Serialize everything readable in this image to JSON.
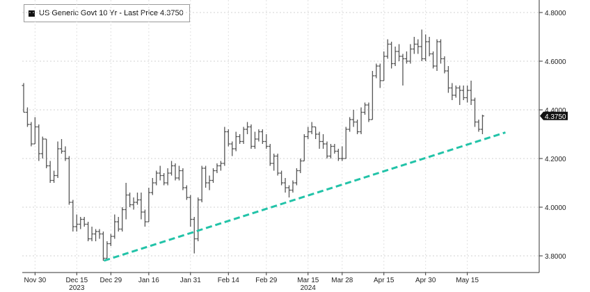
{
  "chart_data": {
    "type": "bar",
    "style": "ohlc",
    "legend": {
      "label": "US Generic Govt 10 Yr - Last Price 4.3750",
      "placement": "top-left"
    },
    "last_price_label": "4.3750",
    "x_axis": {
      "tick_labels": [
        "Nov 30",
        "Dec 15",
        "Dec 29",
        "Jan 16",
        "Jan 31",
        "Feb 14",
        "Feb 29",
        "Mar 15",
        "Mar 28",
        "Apr 15",
        "Apr 30",
        "May 15"
      ],
      "year_labels": [
        "2023",
        "2024"
      ]
    },
    "y_axis": {
      "position": "right",
      "ylim": [
        3.74,
        4.84
      ],
      "tick_labels": [
        "3.8000",
        "4.0000",
        "4.2000",
        "4.4000",
        "4.6000",
        "4.8000"
      ]
    },
    "grid": true,
    "colors": {
      "bars": "#555555",
      "trendline": "#22c3a8",
      "last_price_box": "#111111"
    },
    "trendline": {
      "style": "dashed",
      "from": [
        "Dec 29",
        3.78
      ],
      "to": [
        "May 23",
        4.33
      ]
    },
    "ohlc": [
      {
        "date": "Nov 27",
        "o": 4.5,
        "h": 4.51,
        "l": 4.39,
        "c": 4.39
      },
      {
        "date": "Nov 28",
        "o": 4.39,
        "h": 4.41,
        "l": 4.33,
        "c": 4.34
      },
      {
        "date": "Nov 29",
        "o": 4.34,
        "h": 4.35,
        "l": 4.25,
        "c": 4.26
      },
      {
        "date": "Nov 30",
        "o": 4.26,
        "h": 4.37,
        "l": 4.26,
        "c": 4.33
      },
      {
        "date": "Dec 1",
        "o": 4.33,
        "h": 4.34,
        "l": 4.19,
        "c": 4.22
      },
      {
        "date": "Dec 4",
        "o": 4.22,
        "h": 4.29,
        "l": 4.2,
        "c": 4.28
      },
      {
        "date": "Dec 5",
        "o": 4.28,
        "h": 4.28,
        "l": 4.16,
        "c": 4.17
      },
      {
        "date": "Dec 6",
        "o": 4.17,
        "h": 4.19,
        "l": 4.1,
        "c": 4.11
      },
      {
        "date": "Dec 7",
        "o": 4.11,
        "h": 4.15,
        "l": 4.1,
        "c": 4.13
      },
      {
        "date": "Dec 8",
        "o": 4.13,
        "h": 4.27,
        "l": 4.12,
        "c": 4.24
      },
      {
        "date": "Dec 11",
        "o": 4.24,
        "h": 4.28,
        "l": 4.22,
        "c": 4.23
      },
      {
        "date": "Dec 12",
        "o": 4.23,
        "h": 4.25,
        "l": 4.19,
        "c": 4.2
      },
      {
        "date": "Dec 13",
        "o": 4.2,
        "h": 4.21,
        "l": 4.01,
        "c": 4.02
      },
      {
        "date": "Dec 14",
        "o": 4.02,
        "h": 4.03,
        "l": 3.9,
        "c": 3.92
      },
      {
        "date": "Dec 15",
        "o": 3.92,
        "h": 3.97,
        "l": 3.9,
        "c": 3.93
      },
      {
        "date": "Dec 18",
        "o": 3.93,
        "h": 3.96,
        "l": 3.91,
        "c": 3.95
      },
      {
        "date": "Dec 19",
        "o": 3.95,
        "h": 3.96,
        "l": 3.92,
        "c": 3.93
      },
      {
        "date": "Dec 20",
        "o": 3.93,
        "h": 3.94,
        "l": 3.86,
        "c": 3.87
      },
      {
        "date": "Dec 21",
        "o": 3.87,
        "h": 3.92,
        "l": 3.86,
        "c": 3.89
      },
      {
        "date": "Dec 22",
        "o": 3.89,
        "h": 3.91,
        "l": 3.86,
        "c": 3.9
      },
      {
        "date": "Dec 26",
        "o": 3.9,
        "h": 3.91,
        "l": 3.87,
        "c": 3.89
      },
      {
        "date": "Dec 27",
        "o": 3.89,
        "h": 3.9,
        "l": 3.78,
        "c": 3.79
      },
      {
        "date": "Dec 28",
        "o": 3.79,
        "h": 3.86,
        "l": 3.79,
        "c": 3.85
      },
      {
        "date": "Dec 29",
        "o": 3.85,
        "h": 3.89,
        "l": 3.84,
        "c": 3.88
      },
      {
        "date": "Jan 2",
        "o": 3.88,
        "h": 3.97,
        "l": 3.87,
        "c": 3.94
      },
      {
        "date": "Jan 3",
        "o": 3.94,
        "h": 3.96,
        "l": 3.9,
        "c": 3.91
      },
      {
        "date": "Jan 4",
        "o": 3.91,
        "h": 4.0,
        "l": 3.9,
        "c": 3.99
      },
      {
        "date": "Jan 5",
        "o": 3.99,
        "h": 4.1,
        "l": 3.95,
        "c": 4.05
      },
      {
        "date": "Jan 8",
        "o": 4.05,
        "h": 4.06,
        "l": 4.0,
        "c": 4.01
      },
      {
        "date": "Jan 9",
        "o": 4.01,
        "h": 4.04,
        "l": 3.99,
        "c": 4.02
      },
      {
        "date": "Jan 10",
        "o": 4.02,
        "h": 4.06,
        "l": 4.01,
        "c": 4.03
      },
      {
        "date": "Jan 11",
        "o": 4.03,
        "h": 4.06,
        "l": 3.95,
        "c": 3.98
      },
      {
        "date": "Jan 12",
        "o": 3.98,
        "h": 3.99,
        "l": 3.92,
        "c": 3.94
      },
      {
        "date": "Jan 16",
        "o": 3.94,
        "h": 4.08,
        "l": 3.94,
        "c": 4.06
      },
      {
        "date": "Jan 17",
        "o": 4.06,
        "h": 4.12,
        "l": 4.05,
        "c": 4.1
      },
      {
        "date": "Jan 18",
        "o": 4.1,
        "h": 4.15,
        "l": 4.09,
        "c": 4.14
      },
      {
        "date": "Jan 19",
        "o": 4.14,
        "h": 4.17,
        "l": 4.11,
        "c": 4.13
      },
      {
        "date": "Jan 22",
        "o": 4.13,
        "h": 4.14,
        "l": 4.09,
        "c": 4.1
      },
      {
        "date": "Jan 23",
        "o": 4.1,
        "h": 4.16,
        "l": 4.09,
        "c": 4.14
      },
      {
        "date": "Jan 24",
        "o": 4.14,
        "h": 4.19,
        "l": 4.13,
        "c": 4.17
      },
      {
        "date": "Jan 25",
        "o": 4.17,
        "h": 4.18,
        "l": 4.11,
        "c": 4.12
      },
      {
        "date": "Jan 26",
        "o": 4.12,
        "h": 4.17,
        "l": 4.11,
        "c": 4.15
      },
      {
        "date": "Jan 29",
        "o": 4.15,
        "h": 4.16,
        "l": 4.07,
        "c": 4.08
      },
      {
        "date": "Jan 30",
        "o": 4.08,
        "h": 4.09,
        "l": 4.03,
        "c": 4.04
      },
      {
        "date": "Jan 31",
        "o": 4.04,
        "h": 4.05,
        "l": 3.92,
        "c": 3.95
      },
      {
        "date": "Feb 1",
        "o": 3.95,
        "h": 3.96,
        "l": 3.81,
        "c": 3.87
      },
      {
        "date": "Feb 2",
        "o": 3.87,
        "h": 4.04,
        "l": 3.86,
        "c": 4.03
      },
      {
        "date": "Feb 5",
        "o": 4.03,
        "h": 4.17,
        "l": 4.02,
        "c": 4.16
      },
      {
        "date": "Feb 6",
        "o": 4.16,
        "h": 4.17,
        "l": 4.08,
        "c": 4.1
      },
      {
        "date": "Feb 7",
        "o": 4.1,
        "h": 4.13,
        "l": 4.07,
        "c": 4.11
      },
      {
        "date": "Feb 8",
        "o": 4.11,
        "h": 4.16,
        "l": 4.1,
        "c": 4.15
      },
      {
        "date": "Feb 9",
        "o": 4.15,
        "h": 4.18,
        "l": 4.14,
        "c": 4.17
      },
      {
        "date": "Feb 12",
        "o": 4.17,
        "h": 4.19,
        "l": 4.15,
        "c": 4.18
      },
      {
        "date": "Feb 13",
        "o": 4.18,
        "h": 4.33,
        "l": 4.17,
        "c": 4.31
      },
      {
        "date": "Feb 14",
        "o": 4.31,
        "h": 4.32,
        "l": 4.25,
        "c": 4.26
      },
      {
        "date": "Feb 15",
        "o": 4.26,
        "h": 4.27,
        "l": 4.21,
        "c": 4.24
      },
      {
        "date": "Feb 16",
        "o": 4.24,
        "h": 4.31,
        "l": 4.23,
        "c": 4.29
      },
      {
        "date": "Feb 20",
        "o": 4.29,
        "h": 4.3,
        "l": 4.26,
        "c": 4.27
      },
      {
        "date": "Feb 21",
        "o": 4.27,
        "h": 4.33,
        "l": 4.26,
        "c": 4.32
      },
      {
        "date": "Feb 22",
        "o": 4.32,
        "h": 4.35,
        "l": 4.3,
        "c": 4.33
      },
      {
        "date": "Feb 23",
        "o": 4.33,
        "h": 4.34,
        "l": 4.24,
        "c": 4.25
      },
      {
        "date": "Feb 26",
        "o": 4.25,
        "h": 4.31,
        "l": 4.24,
        "c": 4.28
      },
      {
        "date": "Feb 27",
        "o": 4.28,
        "h": 4.32,
        "l": 4.27,
        "c": 4.31
      },
      {
        "date": "Feb 28",
        "o": 4.31,
        "h": 4.32,
        "l": 4.26,
        "c": 4.27
      },
      {
        "date": "Feb 29",
        "o": 4.27,
        "h": 4.3,
        "l": 4.24,
        "c": 4.25
      },
      {
        "date": "Mar 1",
        "o": 4.25,
        "h": 4.26,
        "l": 4.17,
        "c": 4.18
      },
      {
        "date": "Mar 4",
        "o": 4.18,
        "h": 4.22,
        "l": 4.15,
        "c": 4.21
      },
      {
        "date": "Mar 5",
        "o": 4.21,
        "h": 4.22,
        "l": 4.13,
        "c": 4.14
      },
      {
        "date": "Mar 6",
        "o": 4.14,
        "h": 4.15,
        "l": 4.09,
        "c": 4.1
      },
      {
        "date": "Mar 7",
        "o": 4.1,
        "h": 4.12,
        "l": 4.06,
        "c": 4.08
      },
      {
        "date": "Mar 8",
        "o": 4.08,
        "h": 4.09,
        "l": 4.04,
        "c": 4.07
      },
      {
        "date": "Mar 11",
        "o": 4.07,
        "h": 4.11,
        "l": 4.06,
        "c": 4.1
      },
      {
        "date": "Mar 12",
        "o": 4.1,
        "h": 4.16,
        "l": 4.09,
        "c": 4.15
      },
      {
        "date": "Mar 13",
        "o": 4.15,
        "h": 4.2,
        "l": 4.14,
        "c": 4.19
      },
      {
        "date": "Mar 14",
        "o": 4.19,
        "h": 4.3,
        "l": 4.19,
        "c": 4.29
      },
      {
        "date": "Mar 15",
        "o": 4.29,
        "h": 4.33,
        "l": 4.28,
        "c": 4.31
      },
      {
        "date": "Mar 18",
        "o": 4.31,
        "h": 4.35,
        "l": 4.3,
        "c": 4.33
      },
      {
        "date": "Mar 19",
        "o": 4.33,
        "h": 4.33,
        "l": 4.28,
        "c": 4.3
      },
      {
        "date": "Mar 20",
        "o": 4.3,
        "h": 4.31,
        "l": 4.24,
        "c": 4.27
      },
      {
        "date": "Mar 21",
        "o": 4.27,
        "h": 4.3,
        "l": 4.24,
        "c": 4.26
      },
      {
        "date": "Mar 22",
        "o": 4.26,
        "h": 4.27,
        "l": 4.2,
        "c": 4.21
      },
      {
        "date": "Mar 25",
        "o": 4.21,
        "h": 4.26,
        "l": 4.2,
        "c": 4.25
      },
      {
        "date": "Mar 26",
        "o": 4.25,
        "h": 4.26,
        "l": 4.22,
        "c": 4.23
      },
      {
        "date": "Mar 27",
        "o": 4.23,
        "h": 4.24,
        "l": 4.19,
        "c": 4.2
      },
      {
        "date": "Mar 28",
        "o": 4.2,
        "h": 4.25,
        "l": 4.19,
        "c": 4.2
      },
      {
        "date": "Apr 1",
        "o": 4.2,
        "h": 4.33,
        "l": 4.2,
        "c": 4.32
      },
      {
        "date": "Apr 2",
        "o": 4.32,
        "h": 4.37,
        "l": 4.31,
        "c": 4.36
      },
      {
        "date": "Apr 3",
        "o": 4.36,
        "h": 4.4,
        "l": 4.33,
        "c": 4.35
      },
      {
        "date": "Apr 4",
        "o": 4.35,
        "h": 4.36,
        "l": 4.3,
        "c": 4.31
      },
      {
        "date": "Apr 5",
        "o": 4.31,
        "h": 4.41,
        "l": 4.3,
        "c": 4.39
      },
      {
        "date": "Apr 8",
        "o": 4.39,
        "h": 4.43,
        "l": 4.38,
        "c": 4.42
      },
      {
        "date": "Apr 9",
        "o": 4.42,
        "h": 4.43,
        "l": 4.35,
        "c": 4.36
      },
      {
        "date": "Apr 10",
        "o": 4.36,
        "h": 4.56,
        "l": 4.36,
        "c": 4.54
      },
      {
        "date": "Apr 11",
        "o": 4.54,
        "h": 4.59,
        "l": 4.53,
        "c": 4.58
      },
      {
        "date": "Apr 12",
        "o": 4.58,
        "h": 4.59,
        "l": 4.49,
        "c": 4.52
      },
      {
        "date": "Apr 15",
        "o": 4.52,
        "h": 4.64,
        "l": 4.52,
        "c": 4.62
      },
      {
        "date": "Apr 16",
        "o": 4.62,
        "h": 4.69,
        "l": 4.61,
        "c": 4.67
      },
      {
        "date": "Apr 17",
        "o": 4.67,
        "h": 4.68,
        "l": 4.57,
        "c": 4.59
      },
      {
        "date": "Apr 18",
        "o": 4.59,
        "h": 4.66,
        "l": 4.58,
        "c": 4.64
      },
      {
        "date": "Apr 19",
        "o": 4.64,
        "h": 4.67,
        "l": 4.6,
        "c": 4.62
      },
      {
        "date": "Apr 22",
        "o": 4.62,
        "h": 4.63,
        "l": 4.5,
        "c": 4.61
      },
      {
        "date": "Apr 23",
        "o": 4.61,
        "h": 4.64,
        "l": 4.59,
        "c": 4.6
      },
      {
        "date": "Apr 24",
        "o": 4.6,
        "h": 4.67,
        "l": 4.59,
        "c": 4.65
      },
      {
        "date": "Apr 25",
        "o": 4.65,
        "h": 4.7,
        "l": 4.63,
        "c": 4.67
      },
      {
        "date": "Apr 26",
        "o": 4.67,
        "h": 4.69,
        "l": 4.63,
        "c": 4.66
      },
      {
        "date": "Apr 29",
        "o": 4.66,
        "h": 4.73,
        "l": 4.6,
        "c": 4.61
      },
      {
        "date": "Apr 30",
        "o": 4.61,
        "h": 4.71,
        "l": 4.6,
        "c": 4.68
      },
      {
        "date": "May 1",
        "o": 4.68,
        "h": 4.7,
        "l": 4.62,
        "c": 4.63
      },
      {
        "date": "May 2",
        "o": 4.63,
        "h": 4.64,
        "l": 4.57,
        "c": 4.58
      },
      {
        "date": "May 3",
        "o": 4.58,
        "h": 4.69,
        "l": 4.56,
        "c": 4.68
      },
      {
        "date": "May 6",
        "o": 4.68,
        "h": 4.69,
        "l": 4.59,
        "c": 4.61
      },
      {
        "date": "May 7",
        "o": 4.61,
        "h": 4.62,
        "l": 4.55,
        "c": 4.56
      },
      {
        "date": "May 8",
        "o": 4.56,
        "h": 4.58,
        "l": 4.47,
        "c": 4.49
      },
      {
        "date": "May 9",
        "o": 4.49,
        "h": 4.51,
        "l": 4.44,
        "c": 4.46
      },
      {
        "date": "May 10",
        "o": 4.46,
        "h": 4.5,
        "l": 4.45,
        "c": 4.49
      },
      {
        "date": "May 13",
        "o": 4.49,
        "h": 4.5,
        "l": 4.42,
        "c": 4.48
      },
      {
        "date": "May 14",
        "o": 4.48,
        "h": 4.5,
        "l": 4.44,
        "c": 4.45
      },
      {
        "date": "May 15",
        "o": 4.45,
        "h": 4.5,
        "l": 4.43,
        "c": 4.48
      },
      {
        "date": "May 16",
        "o": 4.48,
        "h": 4.52,
        "l": 4.42,
        "c": 4.44
      },
      {
        "date": "May 17",
        "o": 4.44,
        "h": 4.45,
        "l": 4.33,
        "c": 4.35
      },
      {
        "date": "May 20",
        "o": 4.35,
        "h": 4.36,
        "l": 4.31,
        "c": 4.32
      },
      {
        "date": "May 21",
        "o": 4.32,
        "h": 4.38,
        "l": 4.3,
        "c": 4.375
      }
    ]
  }
}
